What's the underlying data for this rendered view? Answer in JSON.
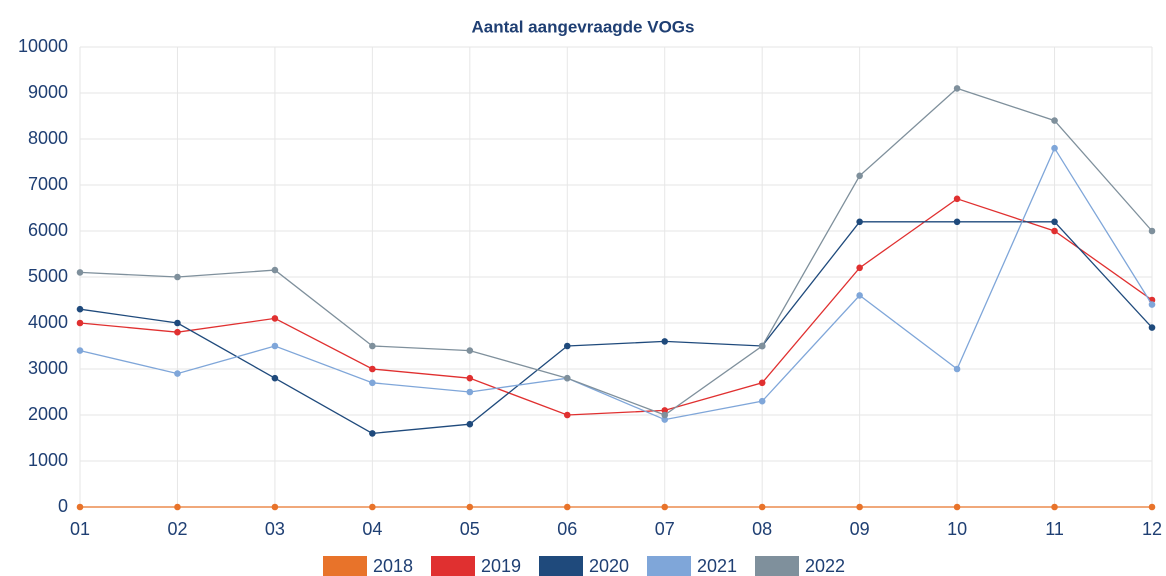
{
  "chart_data": {
    "type": "line",
    "title": "Aantal aangevraagde VOGs",
    "categories": [
      "01",
      "02",
      "03",
      "04",
      "05",
      "06",
      "07",
      "08",
      "09",
      "10",
      "11",
      "12"
    ],
    "series": [
      {
        "name": "2018",
        "color": "#e8732a",
        "values": [
          0,
          0,
          0,
          0,
          0,
          0,
          0,
          0,
          0,
          0,
          0,
          0
        ]
      },
      {
        "name": "2019",
        "color": "#e03030",
        "values": [
          4000,
          3800,
          4100,
          3000,
          2800,
          2000,
          2100,
          2700,
          5200,
          6700,
          6000,
          4500
        ]
      },
      {
        "name": "2020",
        "color": "#1f4a7c",
        "values": [
          4300,
          4000,
          2800,
          1600,
          1800,
          3500,
          3600,
          3500,
          6200,
          6200,
          6200,
          3900
        ]
      },
      {
        "name": "2021",
        "color": "#7fa6d9",
        "values": [
          3400,
          2900,
          3500,
          2700,
          2500,
          2800,
          1900,
          2300,
          4600,
          3000,
          7800,
          4400
        ]
      },
      {
        "name": "2022",
        "color": "#7f909c",
        "values": [
          5100,
          5000,
          5150,
          3500,
          3400,
          2800,
          2000,
          3500,
          7200,
          9100,
          8400,
          6000
        ]
      }
    ],
    "ylim": [
      0,
      10000
    ],
    "yticks": [
      0,
      1000,
      2000,
      3000,
      4000,
      5000,
      6000,
      7000,
      8000,
      9000,
      10000
    ],
    "grid": true
  }
}
